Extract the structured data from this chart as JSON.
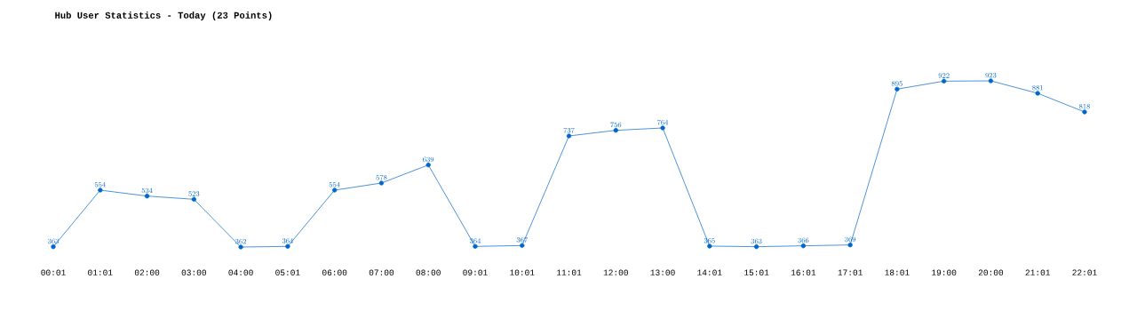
{
  "chart_data": {
    "type": "line",
    "title": "Hub User Statistics - Today (23 Points)",
    "categories": [
      "00:01",
      "01:01",
      "02:00",
      "03:00",
      "04:00",
      "05:01",
      "06:00",
      "07:00",
      "08:00",
      "09:01",
      "10:01",
      "11:01",
      "12:00",
      "13:00",
      "14:01",
      "15:01",
      "16:01",
      "17:01",
      "18:01",
      "19:00",
      "20:00",
      "21:01",
      "22:01"
    ],
    "values": [
      363,
      554,
      534,
      523,
      362,
      364,
      554,
      578,
      639,
      364,
      367,
      737,
      756,
      764,
      365,
      363,
      366,
      369,
      895,
      922,
      923,
      881,
      818
    ],
    "color": "#0066cc",
    "data_labels": true,
    "marker": "circle"
  }
}
